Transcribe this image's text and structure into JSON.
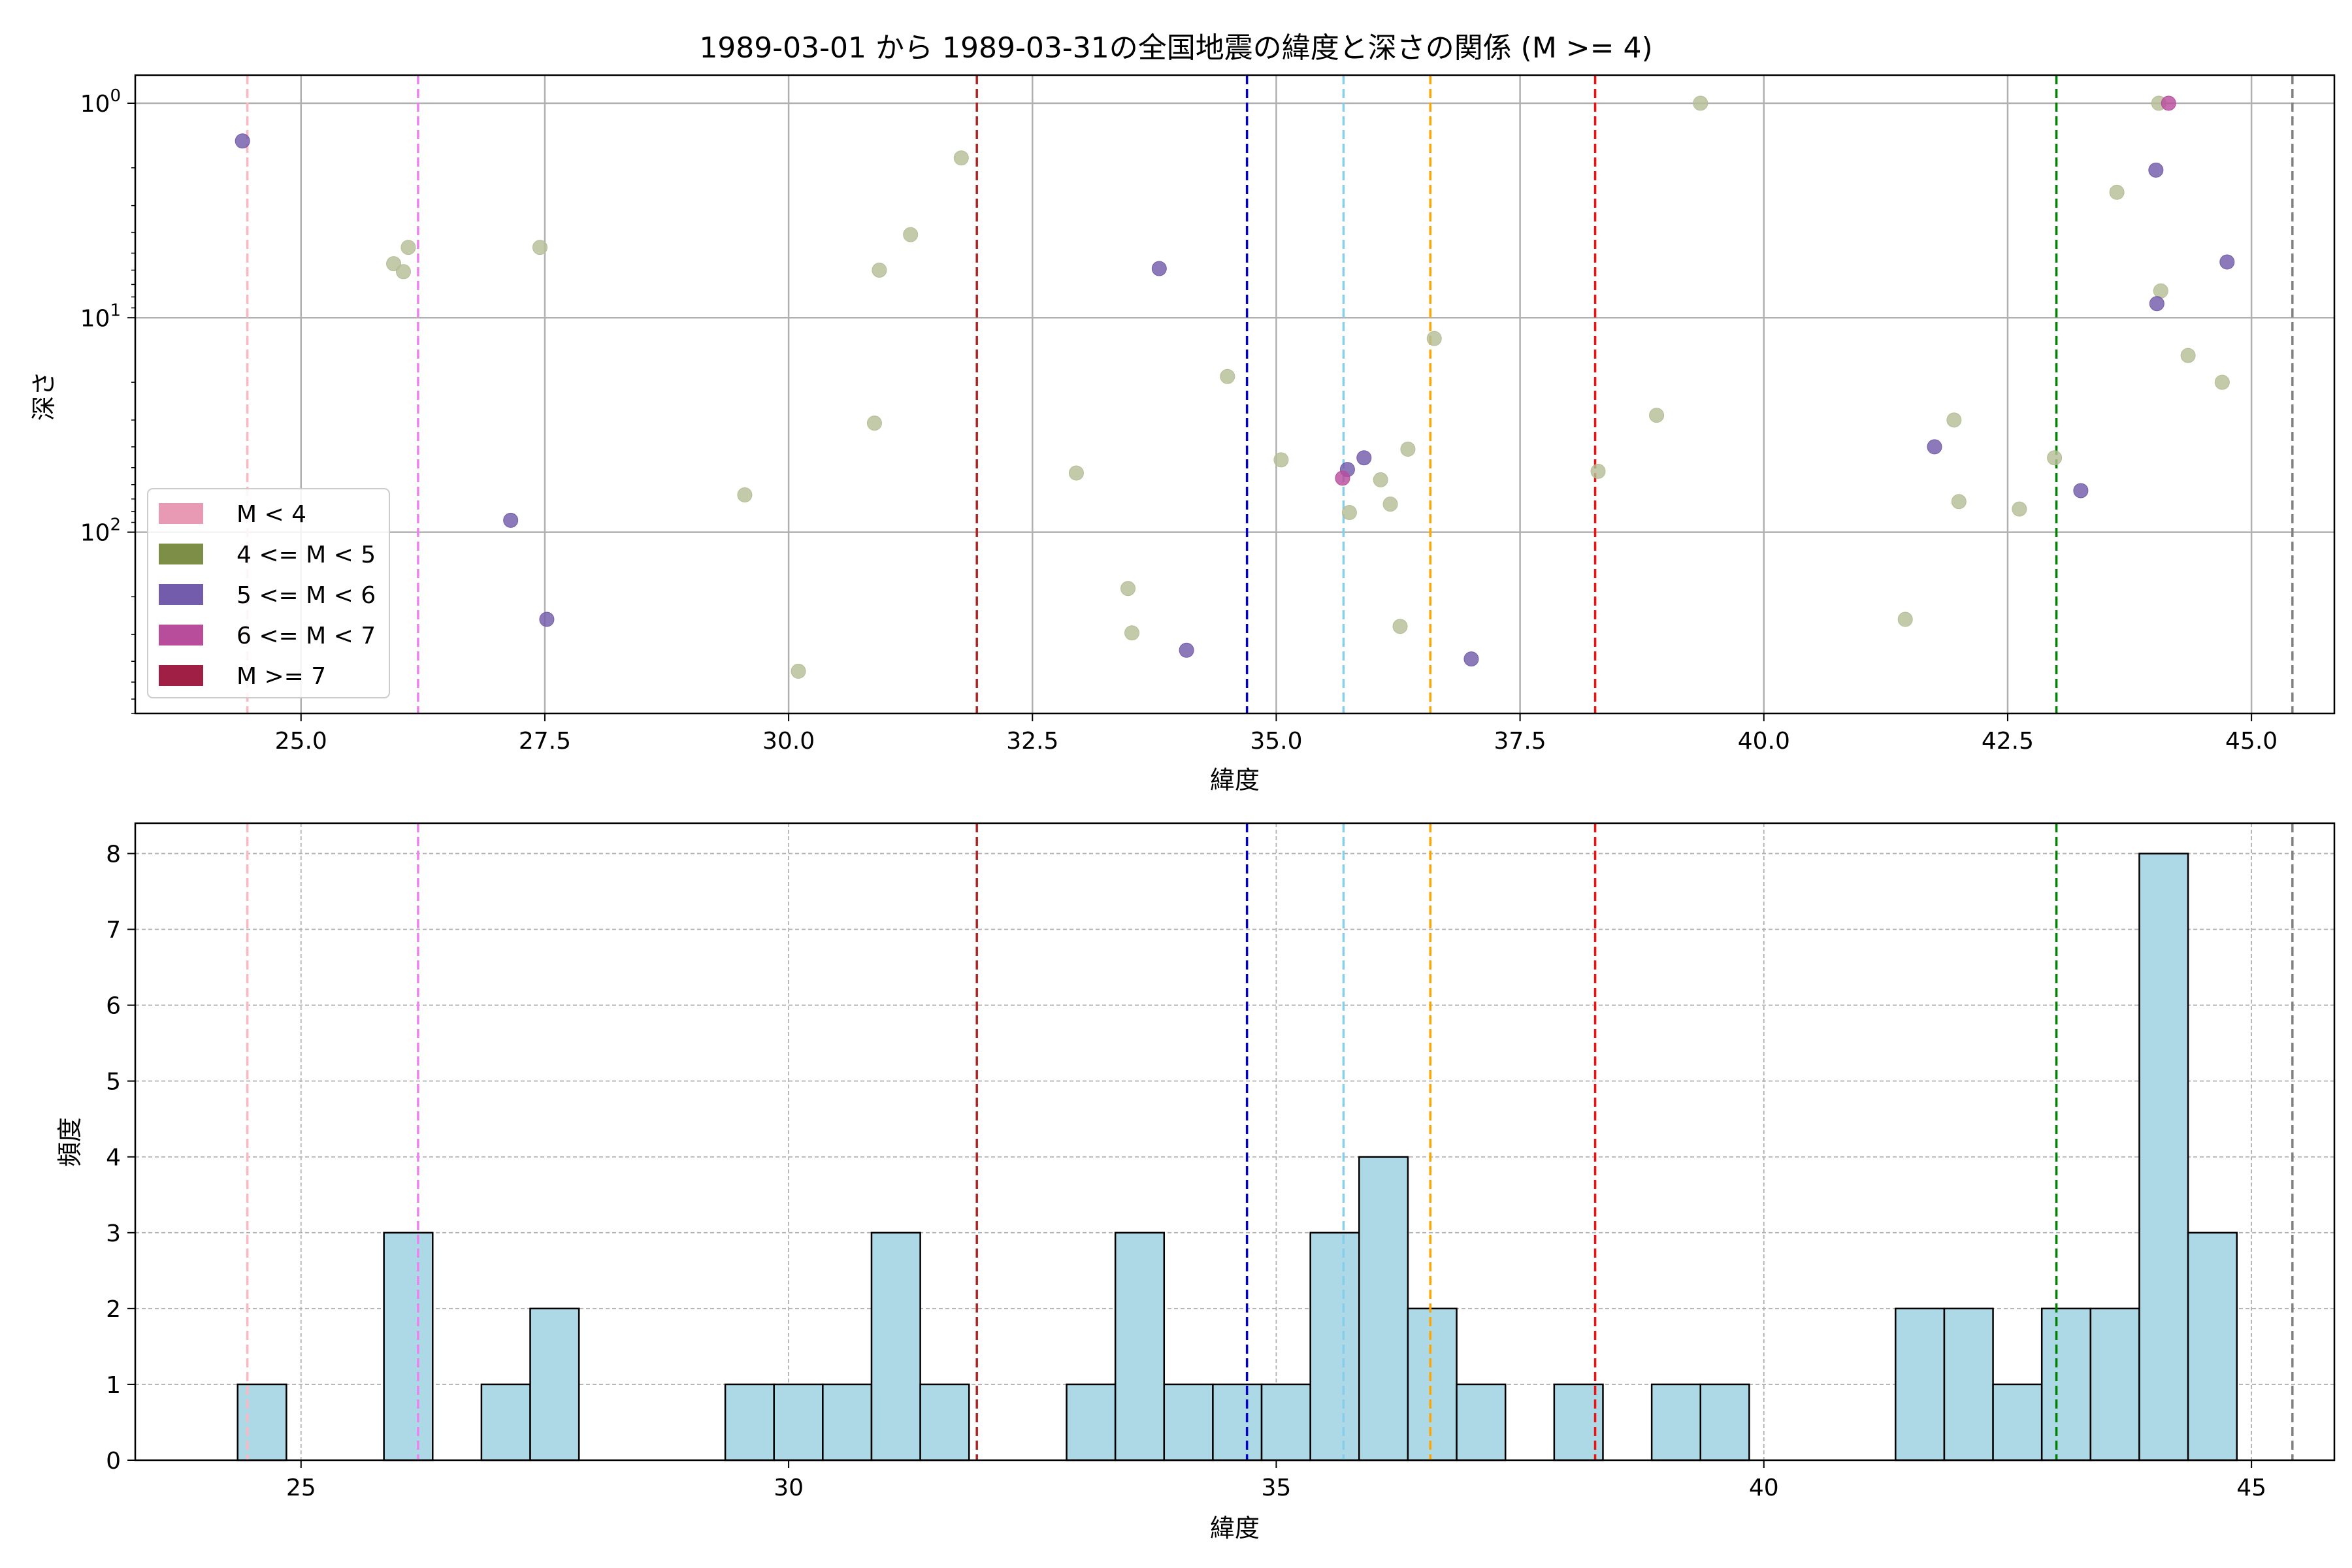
{
  "chart_data": [
    {
      "type": "scatter",
      "title": "1989-03-01 から 1989-03-31の全国地震の緯度と深さの関係 (M >= 4)",
      "xlabel": "緯度",
      "ylabel": "深さ",
      "xlim": [
        23.3,
        45.85
      ],
      "ylim": [
        1.0,
        700
      ],
      "y_scale": "log",
      "y_inverted": true,
      "grid": true,
      "x_ticks": [
        "25.0",
        "27.5",
        "30.0",
        "32.5",
        "35.0",
        "37.5",
        "40.0",
        "42.5",
        "45.0"
      ],
      "x_tick_values": [
        25.0,
        27.5,
        30.0,
        32.5,
        35.0,
        37.5,
        40.0,
        42.5,
        45.0
      ],
      "y_ticks": [
        {
          "base": "10",
          "exp": "0",
          "value": 1
        },
        {
          "base": "10",
          "exp": "1",
          "value": 10
        },
        {
          "base": "10",
          "exp": "2",
          "value": 100
        }
      ],
      "legend": {
        "position": "lower-left",
        "entries": [
          {
            "label": "M < 4",
            "color": "#e89ab5"
          },
          {
            "label": "4 <= M < 5",
            "color": "#7d8e47"
          },
          {
            "label": "5 <= M < 6",
            "color": "#735cab"
          },
          {
            "label": "6 <= M < 7",
            "color": "#b84d9c"
          },
          {
            "label": "M >= 7",
            "color": "#a01f45"
          }
        ]
      },
      "vlines": [
        {
          "x": 24.45,
          "color": "#ffb6c1"
        },
        {
          "x": 26.2,
          "color": "#ee82ee"
        },
        {
          "x": 31.93,
          "color": "#b22222"
        },
        {
          "x": 34.7,
          "color": "#0000cd"
        },
        {
          "x": 35.69,
          "color": "#87ceeb"
        },
        {
          "x": 36.58,
          "color": "#ffa500"
        },
        {
          "x": 38.27,
          "color": "#ee1111"
        },
        {
          "x": 43.0,
          "color": "#008000"
        },
        {
          "x": 45.42,
          "color": "#808080"
        }
      ],
      "series": [
        {
          "color": "#b4be96",
          "points": [
            {
              "x": 25.95,
              "y": 5.6
            },
            {
              "x": 26.05,
              "y": 6.1
            },
            {
              "x": 26.1,
              "y": 4.7
            },
            {
              "x": 27.45,
              "y": 4.7
            },
            {
              "x": 29.55,
              "y": 67
            },
            {
              "x": 30.1,
              "y": 445
            },
            {
              "x": 30.88,
              "y": 31
            },
            {
              "x": 30.93,
              "y": 6.0
            },
            {
              "x": 31.25,
              "y": 4.1
            },
            {
              "x": 31.77,
              "y": 1.8
            },
            {
              "x": 32.95,
              "y": 53
            },
            {
              "x": 33.48,
              "y": 183
            },
            {
              "x": 33.52,
              "y": 295
            },
            {
              "x": 34.5,
              "y": 18.8
            },
            {
              "x": 35.05,
              "y": 46
            },
            {
              "x": 35.75,
              "y": 81
            },
            {
              "x": 36.07,
              "y": 57
            },
            {
              "x": 36.17,
              "y": 74
            },
            {
              "x": 36.27,
              "y": 275
            },
            {
              "x": 36.35,
              "y": 41
            },
            {
              "x": 36.62,
              "y": 12.5
            },
            {
              "x": 38.3,
              "y": 52
            },
            {
              "x": 38.9,
              "y": 28.5
            },
            {
              "x": 39.35,
              "y": 1.0
            },
            {
              "x": 41.45,
              "y": 255
            },
            {
              "x": 41.95,
              "y": 30
            },
            {
              "x": 42.0,
              "y": 72
            },
            {
              "x": 42.62,
              "y": 78
            },
            {
              "x": 42.98,
              "y": 45
            },
            {
              "x": 43.62,
              "y": 2.6
            },
            {
              "x": 44.05,
              "y": 1.0
            },
            {
              "x": 44.07,
              "y": 7.5
            },
            {
              "x": 44.35,
              "y": 15
            },
            {
              "x": 44.7,
              "y": 20
            }
          ]
        },
        {
          "color": "#735cab",
          "points": [
            {
              "x": 24.4,
              "y": 1.5
            },
            {
              "x": 27.15,
              "y": 88
            },
            {
              "x": 27.52,
              "y": 255
            },
            {
              "x": 33.8,
              "y": 5.9
            },
            {
              "x": 34.08,
              "y": 355
            },
            {
              "x": 35.73,
              "y": 51
            },
            {
              "x": 35.9,
              "y": 45
            },
            {
              "x": 37.0,
              "y": 390
            },
            {
              "x": 41.75,
              "y": 40
            },
            {
              "x": 43.25,
              "y": 64
            },
            {
              "x": 44.02,
              "y": 2.05
            },
            {
              "x": 44.03,
              "y": 8.6
            },
            {
              "x": 44.75,
              "y": 5.5
            }
          ]
        },
        {
          "color": "#b84d9c",
          "points": [
            {
              "x": 35.68,
              "y": 56
            },
            {
              "x": 44.15,
              "y": 1.0
            }
          ]
        }
      ]
    },
    {
      "type": "bar",
      "title": "",
      "xlabel": "緯度",
      "ylabel": "頻度",
      "xlim": [
        23.3,
        45.85
      ],
      "ylim": [
        0,
        8.4
      ],
      "grid": true,
      "x_ticks": [
        "25",
        "30",
        "35",
        "40",
        "45"
      ],
      "x_tick_values": [
        25,
        30,
        35,
        40,
        45
      ],
      "y_ticks": [
        "0",
        "1",
        "2",
        "3",
        "4",
        "5",
        "6",
        "7",
        "8"
      ],
      "bin_start": 24.35,
      "bin_width": 0.5,
      "counts": [
        1,
        0,
        0,
        3,
        0,
        1,
        2,
        0,
        0,
        0,
        1,
        1,
        1,
        3,
        1,
        0,
        0,
        1,
        3,
        1,
        1,
        1,
        3,
        4,
        2,
        1,
        0,
        1,
        0,
        1,
        1,
        0,
        0,
        0,
        2,
        2,
        1,
        2,
        2,
        8,
        3
      ],
      "bar_color": "#add8e6",
      "vlines": [
        {
          "x": 24.45,
          "color": "#ffb6c1"
        },
        {
          "x": 26.2,
          "color": "#ee82ee"
        },
        {
          "x": 31.93,
          "color": "#b22222"
        },
        {
          "x": 34.7,
          "color": "#0000cd"
        },
        {
          "x": 35.69,
          "color": "#87ceeb"
        },
        {
          "x": 36.58,
          "color": "#ffa500"
        },
        {
          "x": 38.27,
          "color": "#ee1111"
        },
        {
          "x": 43.0,
          "color": "#008000"
        },
        {
          "x": 45.42,
          "color": "#808080"
        }
      ]
    }
  ]
}
